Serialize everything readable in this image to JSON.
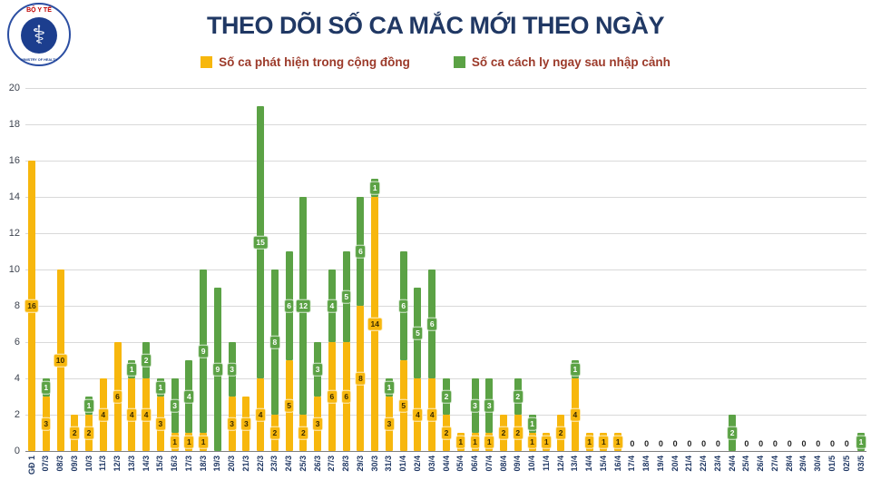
{
  "header": {
    "title": "THEO DÕI SỐ CA MẮC MỚI THEO NGÀY",
    "logo": {
      "top_text": "BỘ Y TẾ",
      "bottom_text": "MINISTRY OF HEALTH",
      "symbol": "staff-of-asclepius-icon"
    }
  },
  "colors": {
    "community": "#F7B70D",
    "imported": "#5BA245",
    "title": "#203864",
    "legend_text": "#9C3A2A",
    "axis_label": "#203864",
    "grid": "#D9D9D9",
    "baseline": "#7F7F7F"
  },
  "chart_data": {
    "type": "bar",
    "stacked": true,
    "grid": true,
    "legend_position": "top",
    "title": "THEO DÕI SỐ CA MẮC MỚI THEO NGÀY",
    "ylim": [
      0,
      20
    ],
    "yticks": [
      0,
      2,
      4,
      6,
      8,
      10,
      12,
      14,
      16,
      18,
      20
    ],
    "zero_label": "0",
    "categories": [
      "GĐ 1",
      "07/3",
      "08/3",
      "09/3",
      "10/3",
      "11/3",
      "12/3",
      "13/3",
      "14/3",
      "15/3",
      "16/3",
      "17/3",
      "18/3",
      "19/3",
      "20/3",
      "21/3",
      "22/3",
      "23/3",
      "24/3",
      "25/3",
      "26/3",
      "27/3",
      "28/3",
      "29/3",
      "30/3",
      "31/3",
      "01/4",
      "02/4",
      "03/4",
      "04/4",
      "05/4",
      "06/4",
      "07/4",
      "08/4",
      "09/4",
      "10/4",
      "11/4",
      "12/4",
      "13/4",
      "14/4",
      "15/4",
      "16/4",
      "17/4",
      "18/4",
      "19/4",
      "20/4",
      "21/4",
      "22/4",
      "23/4",
      "24/4",
      "25/4",
      "26/4",
      "27/4",
      "28/4",
      "29/4",
      "30/4",
      "01/5",
      "02/5",
      "03/5"
    ],
    "series": [
      {
        "name": "Số ca phát hiện trong cộng đồng",
        "color_key": "community",
        "values": [
          16,
          3,
          10,
          2,
          2,
          4,
          6,
          4,
          4,
          3,
          1,
          1,
          1,
          0,
          3,
          3,
          4,
          2,
          5,
          2,
          3,
          6,
          6,
          8,
          14,
          3,
          5,
          4,
          4,
          2,
          1,
          1,
          1,
          2,
          2,
          1,
          1,
          2,
          4,
          1,
          1,
          1,
          0,
          0,
          0,
          0,
          0,
          0,
          0,
          0,
          0,
          0,
          0,
          0,
          0,
          0,
          0,
          0,
          0
        ]
      },
      {
        "name": "Số ca cách ly ngay sau nhập cảnh",
        "color_key": "imported",
        "values": [
          0,
          1,
          0,
          0,
          1,
          0,
          0,
          1,
          2,
          1,
          3,
          4,
          9,
          9,
          3,
          0,
          15,
          8,
          6,
          12,
          3,
          4,
          5,
          6,
          1,
          1,
          6,
          5,
          6,
          2,
          0,
          3,
          3,
          0,
          2,
          1,
          0,
          0,
          1,
          0,
          0,
          0,
          0,
          0,
          0,
          0,
          0,
          0,
          0,
          2,
          0,
          0,
          0,
          0,
          0,
          0,
          0,
          0,
          1
        ]
      }
    ]
  }
}
